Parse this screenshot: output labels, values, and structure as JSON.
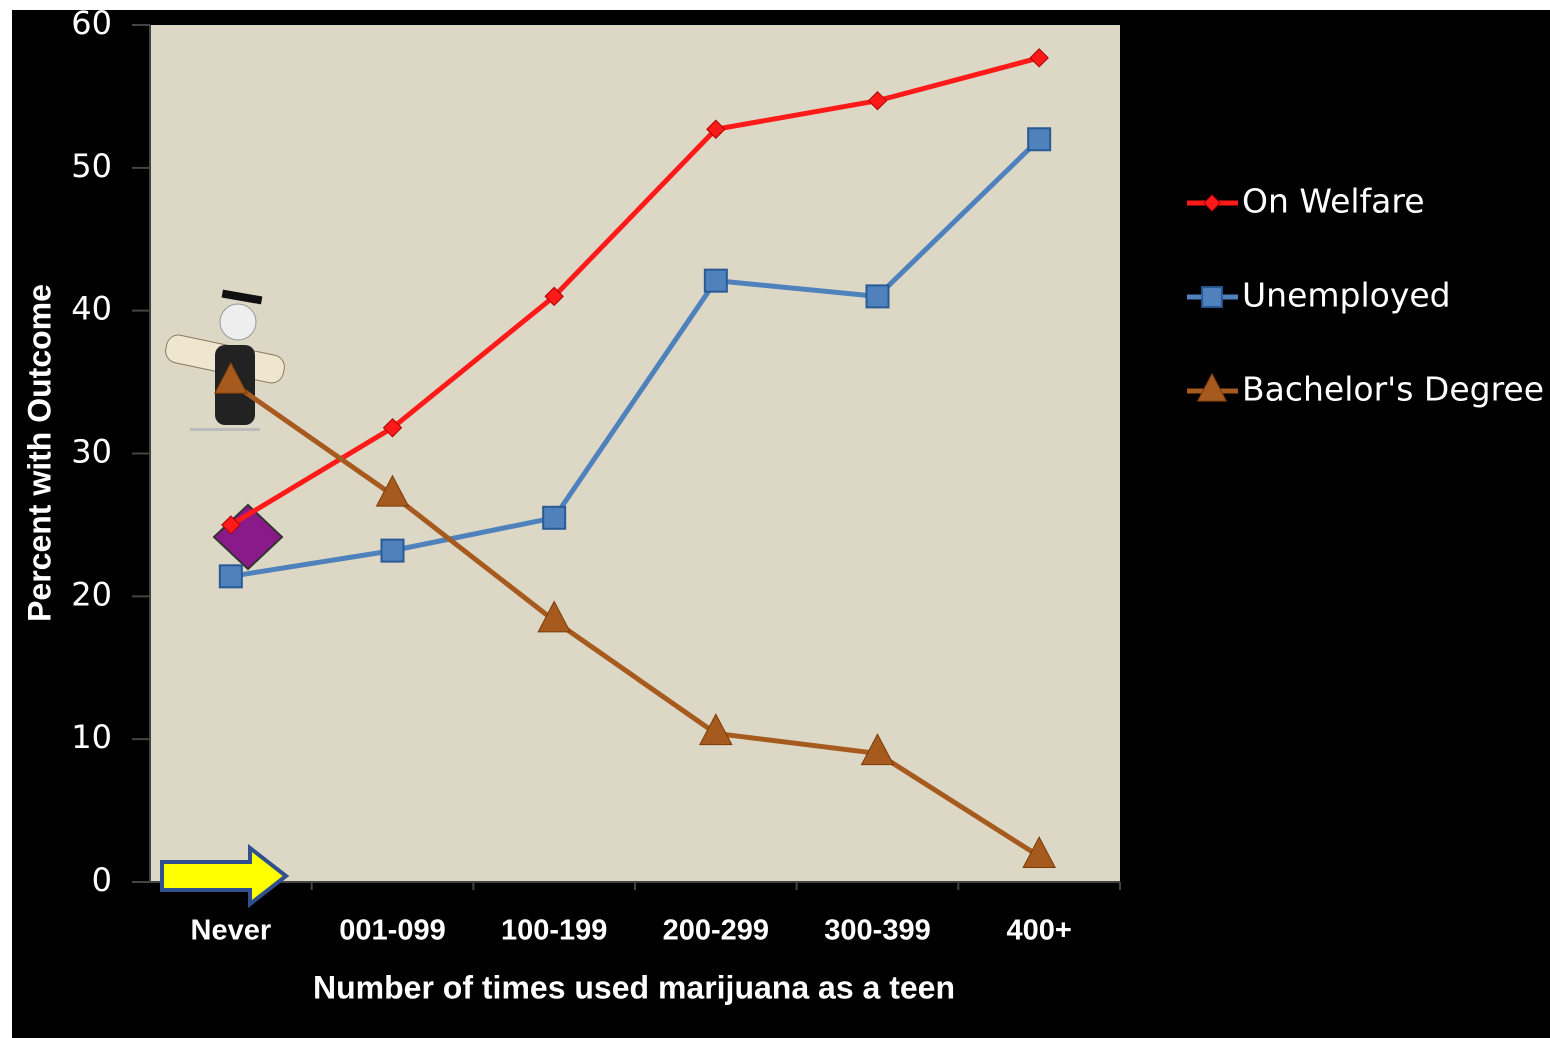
{
  "chart_data": {
    "type": "line",
    "x_label": "Number of times used marijuana as a teen",
    "y_label": "Percent with Outcome",
    "categories": [
      "Never",
      "001-099",
      "100-199",
      "200-299",
      "300-399",
      "400+"
    ],
    "series": [
      {
        "name": "On Welfare",
        "color": "#ff1a1a",
        "marker": "diamond",
        "values": [
          25,
          31.8,
          41,
          52.7,
          54.7,
          57.7
        ]
      },
      {
        "name": "Unemployed",
        "color": "#4f81bd",
        "marker": "square",
        "values": [
          21.4,
          23.2,
          25.5,
          42.1,
          41,
          52
        ]
      },
      {
        "name": "Bachelor's Degree",
        "color": "#a65a1e",
        "marker": "triangle",
        "values": [
          35,
          27.1,
          18.3,
          10.4,
          9,
          1.8
        ]
      }
    ],
    "ylim": [
      0,
      60
    ],
    "yticks": [
      0,
      10,
      20,
      30,
      40,
      50,
      60
    ],
    "grid": false,
    "legend": "right"
  }
}
